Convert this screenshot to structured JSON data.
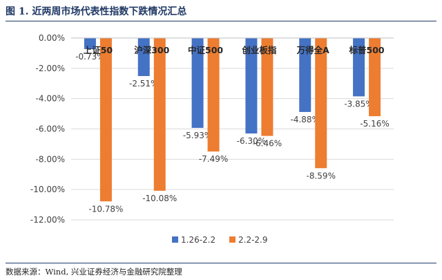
{
  "figure": {
    "title": "图 1. 近两周市场代表性指数下跌情况汇总",
    "source": "数据来源：Wind, 兴业证券经济与金融研究院整理"
  },
  "colors": {
    "series1": "#4472c4",
    "series2": "#ed7d31",
    "grid": "#d9d9d9",
    "axis": "#bfbfbf"
  },
  "chart_data": {
    "type": "bar",
    "categories": [
      "上证50",
      "沪深300",
      "中证500",
      "创业板指",
      "万得全A",
      "标普500"
    ],
    "series": [
      {
        "name": "1.26-2.2",
        "values": [
          -0.73,
          -2.51,
          -5.93,
          -6.3,
          -4.88,
          -3.85
        ],
        "labels": [
          "-0.73%",
          "-2.51%",
          "-5.93%",
          "-6.30%",
          "-4.88%",
          "-3.85%"
        ]
      },
      {
        "name": "2.2-2.9",
        "values": [
          -10.78,
          -10.08,
          -7.49,
          -6.46,
          -8.59,
          -5.16
        ],
        "labels": [
          "-10.78%",
          "-10.08%",
          "-7.49%",
          "-6.46%",
          "-8.59%",
          "-5.16%"
        ]
      }
    ],
    "yticks": [
      "0.00%",
      "-2.00%",
      "-4.00%",
      "-6.00%",
      "-8.00%",
      "-10.00%",
      "-12.00%"
    ],
    "ytick_values": [
      0,
      -2,
      -4,
      -6,
      -8,
      -10,
      -12
    ],
    "ylim": [
      -12,
      0
    ],
    "grid": true,
    "legend": "bottom-center"
  }
}
